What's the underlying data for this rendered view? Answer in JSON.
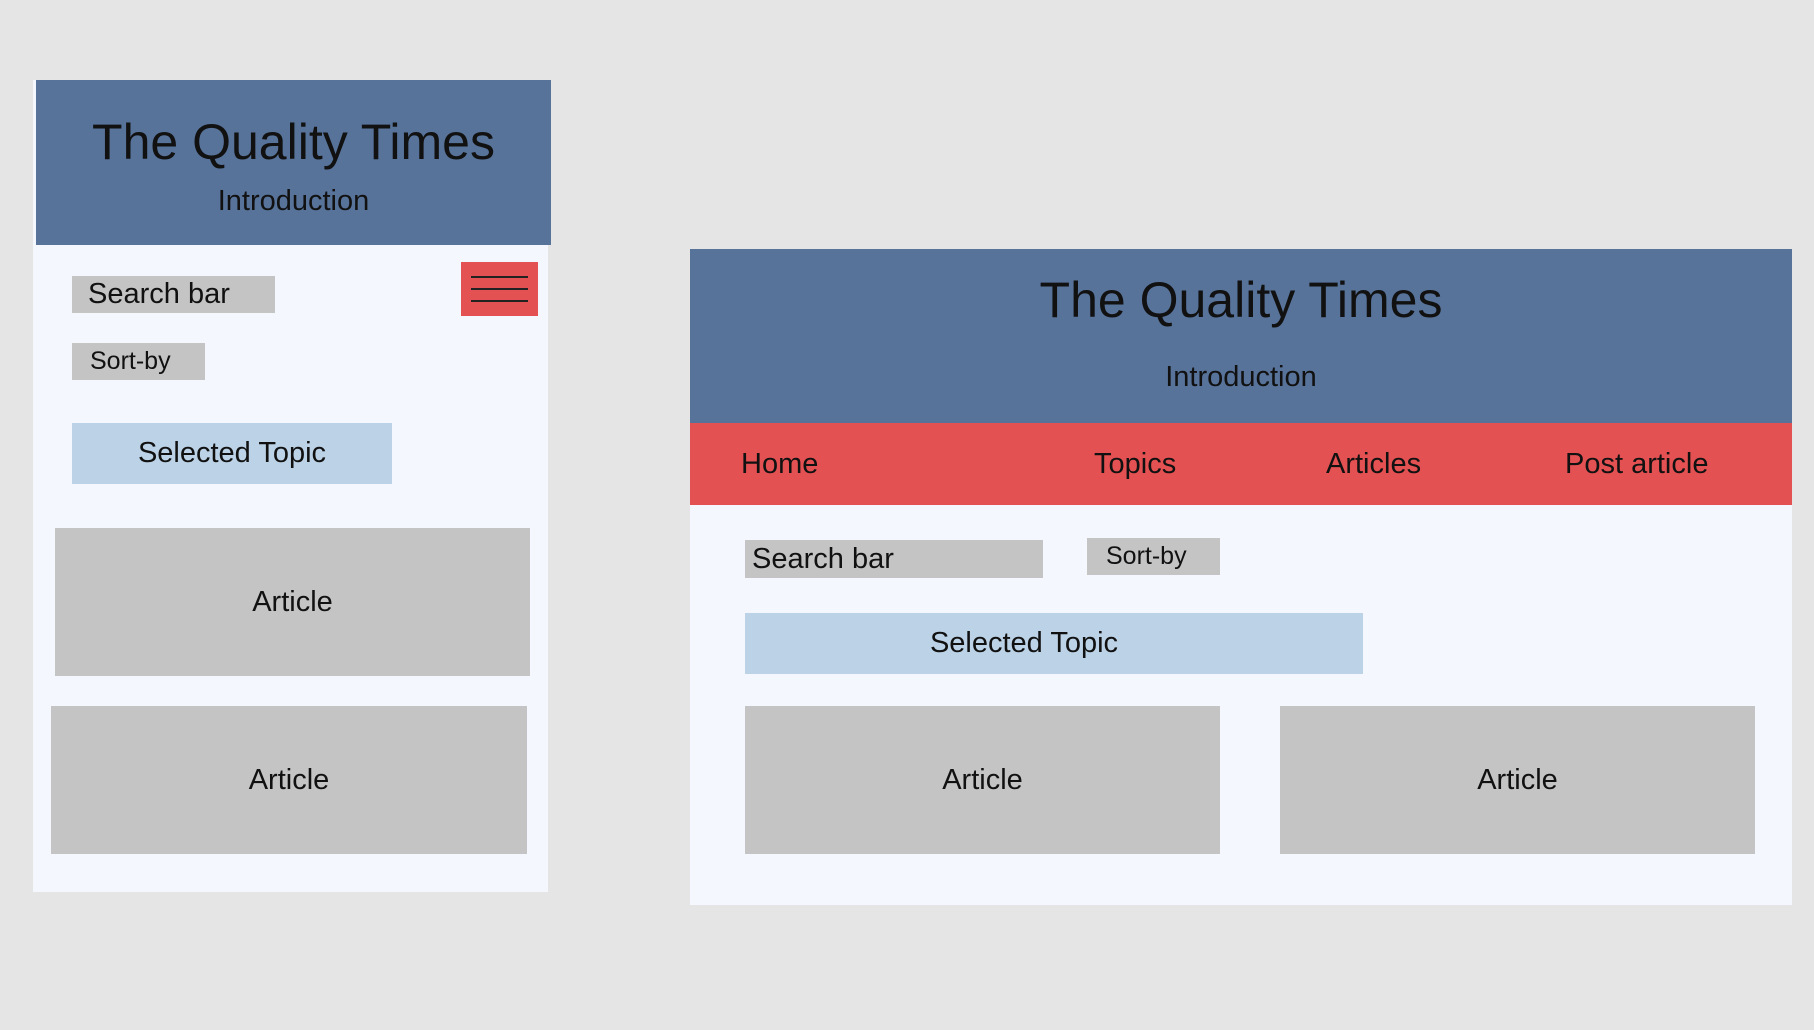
{
  "mobile": {
    "title": "The Quality Times",
    "intro": "Introduction",
    "search_label": "Search bar",
    "menu_icon": "hamburger-menu-icon",
    "sort_label": "Sort-by",
    "topic_label": "Selected Topic",
    "articles": [
      "Article",
      "Article"
    ]
  },
  "desktop": {
    "title": "The Quality Times",
    "intro": "Introduction",
    "nav": [
      "Home",
      "Topics",
      "Articles",
      "Post article"
    ],
    "search_label": "Search bar",
    "sort_label": "Sort-by",
    "topic_label": "Selected Topic",
    "articles": [
      "Article",
      "Article"
    ]
  },
  "colors": {
    "background": "#e5e5e5",
    "frame": "#f5f7ff",
    "header": "#58739a",
    "nav_accent": "#e45152",
    "placeholder_gray": "#c4c4c4",
    "topic_blue": "#bcd3e7"
  }
}
